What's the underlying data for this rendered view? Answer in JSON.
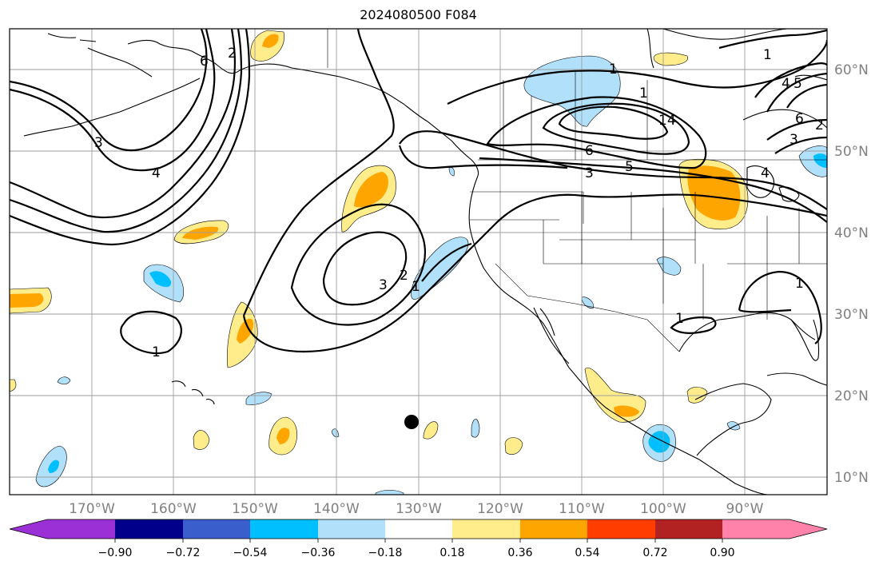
{
  "title": "2024080500 F084",
  "colors": {
    "purple": "#9b30d6",
    "navy": "#00008b",
    "royal": "#3a5fcd",
    "cyan": "#00bfff",
    "lightblue": "#b0e0fa",
    "white": "#ffffff",
    "yellow": "#ffec8b",
    "orange": "#ffa500",
    "redorange": "#ff3d00",
    "brick": "#b22222",
    "pink": "#ff82ab"
  },
  "lon_labels": [
    "170°W",
    "160°W",
    "150°W",
    "140°W",
    "130°W",
    "120°W",
    "110°W",
    "100°W",
    "90°W"
  ],
  "lat_labels": [
    "60°N",
    "50°N",
    "40°N",
    "30°N",
    "20°N",
    "10°N"
  ],
  "colorbar_labels": [
    "−0.90",
    "−0.72",
    "−0.54",
    "−0.36",
    "−0.18",
    "0.18",
    "0.36",
    "0.54",
    "0.72",
    "0.90"
  ],
  "contour_labels": [
    "1",
    "2",
    "3",
    "4",
    "5",
    "6",
    "14",
    "1",
    "1",
    "1",
    "2",
    "3",
    "1",
    "1",
    "3",
    "5",
    "6",
    "4",
    "3",
    "2",
    "4",
    "6",
    "1"
  ]
}
